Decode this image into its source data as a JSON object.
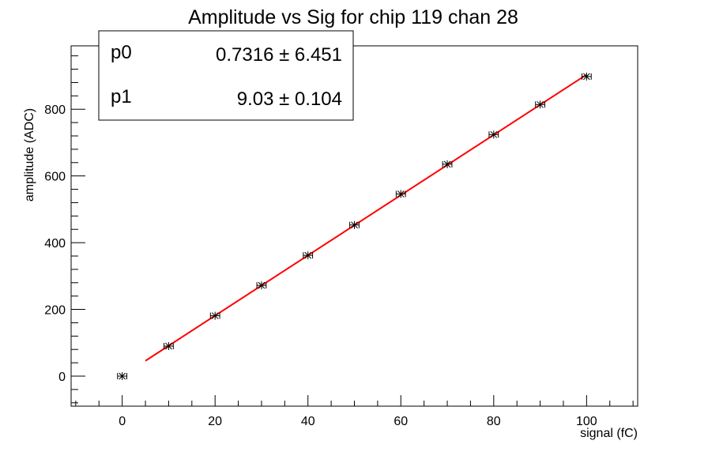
{
  "chart_data": {
    "type": "scatter",
    "title": "Amplitude vs Sig for chip 119 chan 28",
    "xlabel": "signal (fC)",
    "ylabel": "amplitude (ADC)",
    "xlim": [
      -11,
      111
    ],
    "ylim": [
      -90,
      990
    ],
    "x_ticks": [
      0,
      20,
      40,
      60,
      80,
      100
    ],
    "y_ticks": [
      0,
      200,
      400,
      600,
      800
    ],
    "grid": false,
    "series": [
      {
        "x": [
          0,
          10,
          20,
          30,
          40,
          50,
          60,
          70,
          80,
          90,
          100
        ],
        "y": [
          0,
          90,
          181,
          272,
          362,
          453,
          546,
          635,
          724,
          814,
          898
        ],
        "x_err": 1,
        "marker": "star",
        "color": "#000000"
      }
    ],
    "fit": {
      "type": "line",
      "color": "#ff0000",
      "x_range": [
        5,
        100
      ],
      "p0": 0.7316,
      "p1": 9.03
    },
    "stats": [
      {
        "name": "p0",
        "value": "0.7316 ± 6.451"
      },
      {
        "name": "p1",
        "value": "9.03 ± 0.104"
      }
    ]
  }
}
